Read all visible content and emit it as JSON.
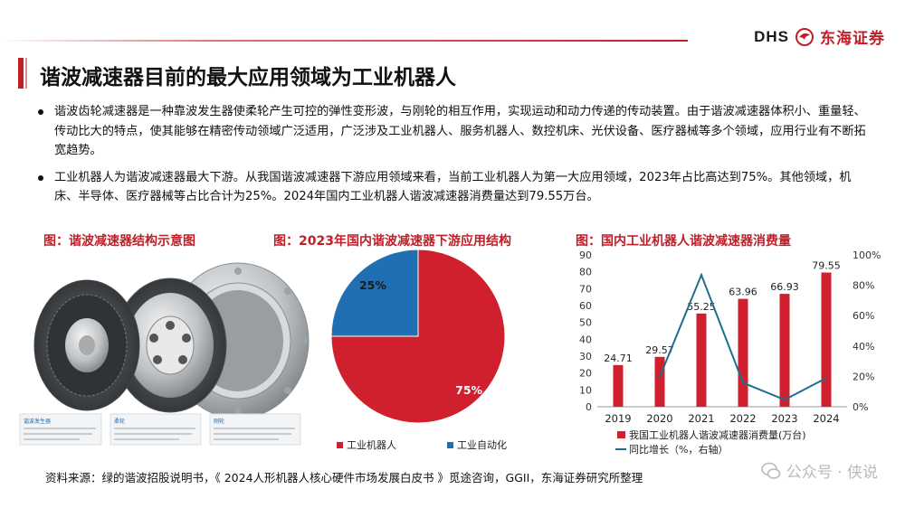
{
  "header": {
    "logo_latin": "DHS",
    "logo_cn": "东海证券",
    "brand_color": "#c01e28"
  },
  "title": "谐波减速器目前的最大应用领域为工业机器人",
  "bullets": [
    "谐波齿轮减速器是一种靠波发生器使柔轮产生可控的弹性变形波，与刚轮的相互作用，实现运动和动力传递的传动装置。由于谐波减速器体积小、重量轻、传动比大的特点，使其能够在精密传动领域广泛适用，广泛涉及工业机器人、服务机器人、数控机床、光伏设备、医疗器械等多个领域，应用行业有不断拓宽趋势。",
    "工业机器人为谐波减速器最大下游。从我国谐波减速器下游应用领域来看，当前工业机器人为第一大应用领域，2023年占比高达到75%。其他领域，机床、半导体、医疗器械等占比合计为25%。2024年国内工业机器人谐波减速器消费量达到79.55万台。"
  ],
  "figures": {
    "fig1_title": "图：谐波减速器结构示意图",
    "fig2_title": "图：2023年国内谐波减速器下游应用结构",
    "fig3_title": "图：国内工业机器人谐波减速器消费量"
  },
  "chart_data": [
    {
      "type": "pie",
      "categories": [
        "工业机器人",
        "工业自动化"
      ],
      "values": [
        75,
        25
      ],
      "data_labels": [
        "75%",
        "25%"
      ],
      "colors": [
        "#d0202e",
        "#1f6fb2"
      ],
      "legend_position": "bottom"
    },
    {
      "type": "bar",
      "categories": [
        "2019",
        "2020",
        "2021",
        "2022",
        "2023",
        "2024"
      ],
      "series": [
        {
          "name": "我国工业机器人谐波减速器消费量(万台)",
          "type": "bar",
          "axis": "left",
          "values": [
            24.71,
            29.57,
            55.25,
            63.96,
            66.93,
            79.55
          ],
          "data_labels": [
            "24.71",
            "29.57",
            "55.25",
            "63.96",
            "66.93",
            "79.55"
          ],
          "color": "#d0202e"
        },
        {
          "name": "同比增长（%，右轴）",
          "type": "line",
          "axis": "right",
          "values": [
            null,
            19.7,
            86.8,
            15.8,
            4.6,
            18.9
          ],
          "color": "#1f6f8b"
        }
      ],
      "ylim": [
        0,
        90
      ],
      "yticks": [
        "0",
        "10",
        "20",
        "30",
        "40",
        "50",
        "60",
        "70",
        "80",
        "90"
      ],
      "y2lim": [
        0,
        100
      ],
      "y2ticks": [
        "0%",
        "20%",
        "40%",
        "60%",
        "80%",
        "100%"
      ],
      "legend_position": "bottom"
    }
  ],
  "illustration": {
    "caption_labels": [
      "谐波发生器",
      "柔轮",
      "刚轮"
    ]
  },
  "source": "资料来源：绿的谐波招股说明书，《 2024人形机器人核心硬件市场发展白皮书 》觅途咨询，GGII，东海证券研究所整理",
  "watermark": "公众号 · 侠说"
}
